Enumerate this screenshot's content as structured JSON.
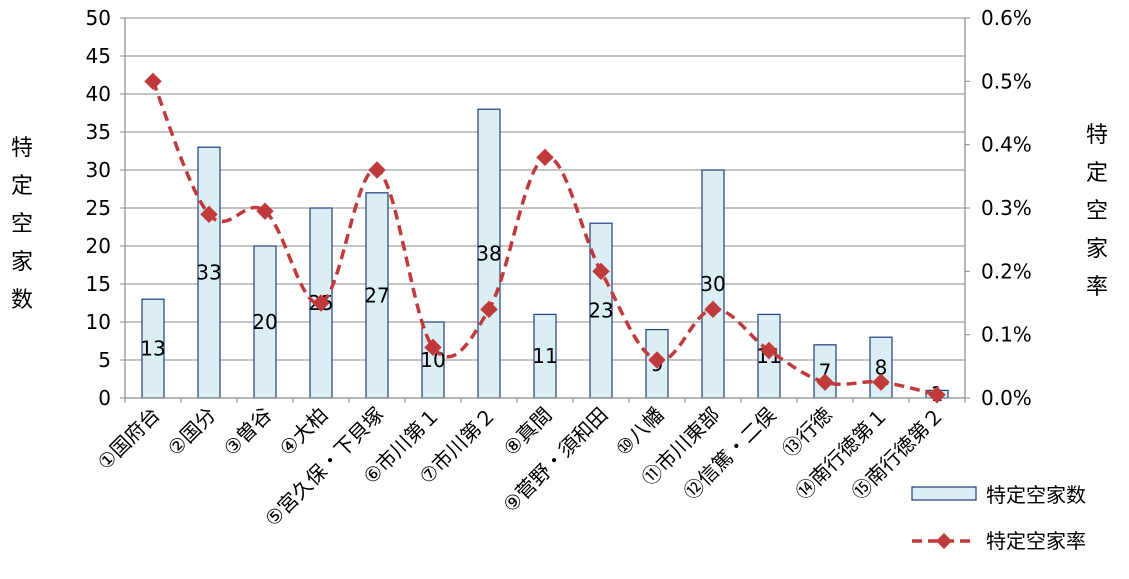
{
  "chart_data": {
    "type": "bar",
    "categories": [
      "①国府台",
      "②国分",
      "③曽谷",
      "④大柏",
      "⑤宮久保・下貝塚",
      "⑥市川第１",
      "⑦市川第２",
      "⑧真間",
      "⑨菅野・須和田",
      "⑩八幡",
      "⑪市川東部",
      "⑫信篤・二俣",
      "⑬行徳",
      "⑭南行徳第１",
      "⑮南行徳第２"
    ],
    "series": [
      {
        "name": "特定空家数",
        "type": "bar",
        "axis": "left",
        "values": [
          13,
          33,
          20,
          25,
          27,
          10,
          38,
          11,
          23,
          9,
          30,
          11,
          7,
          8,
          1
        ],
        "fill": "#dbeef4",
        "stroke": "#1f3f7f"
      },
      {
        "name": "特定空家率",
        "type": "line",
        "axis": "right",
        "values": [
          0.005,
          0.0029,
          0.00295,
          0.0015,
          0.0036,
          0.0008,
          0.0014,
          0.0038,
          0.002,
          0.0006,
          0.0014,
          0.00075,
          0.00025,
          0.00025,
          5e-05
        ],
        "color": "#c0393b",
        "marker": "diamond",
        "line_style": "dashed"
      }
    ],
    "y_left": {
      "label": "特定空家数",
      "ylim": [
        0,
        50
      ],
      "ticks": [
        "0",
        "5",
        "10",
        "15",
        "20",
        "25",
        "30",
        "35",
        "40",
        "45",
        "50"
      ]
    },
    "y_right": {
      "label": "特定空家率",
      "ylim": [
        0,
        0.006
      ],
      "ticks": [
        "0.0%",
        "0.1%",
        "0.2%",
        "0.3%",
        "0.4%",
        "0.5%",
        "0.6%"
      ]
    },
    "grid": true,
    "legend": "bottom-right"
  }
}
